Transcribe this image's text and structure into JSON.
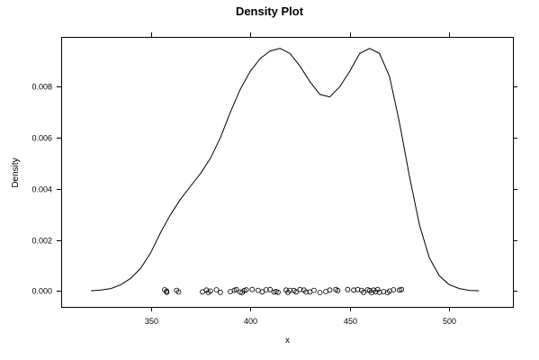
{
  "chart_data": {
    "type": "line",
    "title": "Density Plot",
    "xlabel": "x",
    "ylabel": "Density",
    "xlim": [
      305,
      532
    ],
    "ylim": [
      -0.00062,
      0.00995
    ],
    "x_ticks": [
      350,
      400,
      450,
      500
    ],
    "x_tick_labels": [
      "350",
      "400",
      "450",
      "500"
    ],
    "y_ticks": [
      0,
      0.002,
      0.004,
      0.006,
      0.008
    ],
    "y_tick_labels": [
      "0.000",
      "0.002",
      "0.004",
      "0.006",
      "0.008"
    ],
    "grid": false,
    "legend": "none",
    "series": [
      {
        "style": "line",
        "x": [
          320,
          325,
          330,
          335,
          340,
          345,
          350,
          355,
          360,
          365,
          370,
          375,
          380,
          385,
          390,
          395,
          400,
          405,
          410,
          415,
          420,
          425,
          430,
          435,
          440,
          445,
          450,
          455,
          460,
          465,
          470,
          475,
          480,
          485,
          490,
          495,
          500,
          505,
          510,
          515
        ],
        "y": [
          1e-05,
          4e-05,
          0.0001,
          0.00025,
          0.0005,
          0.0009,
          0.0015,
          0.0023,
          0.003,
          0.0036,
          0.0041,
          0.0046,
          0.0052,
          0.006,
          0.007,
          0.0079,
          0.0086,
          0.0091,
          0.0094,
          0.0095,
          0.0093,
          0.0088,
          0.0082,
          0.0077,
          0.0076,
          0.008,
          0.0086,
          0.0093,
          0.0095,
          0.0093,
          0.0084,
          0.0066,
          0.0045,
          0.0026,
          0.0013,
          0.0006,
          0.00025,
          0.0001,
          3e-05,
          1e-05
        ]
      },
      {
        "style": "rug-points",
        "x": [
          357,
          358,
          358,
          363,
          364,
          376,
          378,
          379,
          380,
          383,
          385,
          390,
          392,
          393,
          395,
          396,
          397,
          398,
          401,
          404,
          406,
          408,
          410,
          412,
          413,
          414,
          418,
          419,
          420,
          422,
          423,
          425,
          427,
          428,
          430,
          432,
          435,
          438,
          440,
          443,
          444,
          449,
          452,
          454,
          456,
          457,
          459,
          460,
          461,
          462,
          463,
          464,
          465,
          467,
          469,
          470,
          472,
          475,
          476
        ],
        "y": [
          5e-05,
          -5e-05,
          0.0,
          3e-05,
          -4e-05,
          -3e-05,
          4e-05,
          -6e-05,
          0.0,
          5e-05,
          -5e-05,
          -2e-05,
          3e-05,
          6e-05,
          -4e-05,
          -6e-05,
          2e-05,
          5e-05,
          6e-05,
          3e-05,
          -3e-05,
          5e-05,
          6e-05,
          -4e-05,
          -2e-05,
          -5e-05,
          4e-05,
          -5e-05,
          3e-05,
          2e-05,
          -3e-05,
          6e-05,
          4e-05,
          -4e-05,
          -3e-05,
          3e-05,
          -6e-05,
          -2e-05,
          4e-05,
          6e-05,
          2e-05,
          6e-05,
          4e-05,
          6e-05,
          3e-05,
          -5e-05,
          5e-05,
          2e-05,
          -6e-05,
          4e-05,
          -3e-05,
          6e-05,
          -5e-05,
          -2e-05,
          -6e-05,
          0.0,
          5e-05,
          4e-05,
          6e-05
        ]
      }
    ]
  }
}
